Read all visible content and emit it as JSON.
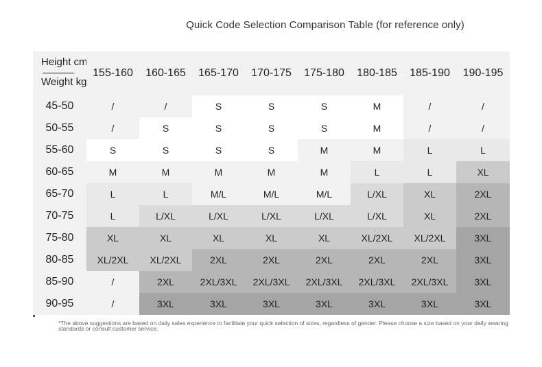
{
  "title": "Quick Code Selection Comparison Table (for reference only)",
  "header": {
    "height_label": "Height cm",
    "weight_label": "Weight kg",
    "heights": [
      "155-160",
      "160-165",
      "165-170",
      "170-175",
      "175-180",
      "180-185",
      "185-190",
      "190-195"
    ]
  },
  "rows": [
    {
      "weight": "45-50",
      "sizes": [
        "/",
        "/",
        "S",
        "S",
        "S",
        "M",
        "/",
        "/"
      ]
    },
    {
      "weight": "50-55",
      "sizes": [
        "/",
        "S",
        "S",
        "S",
        "S",
        "M",
        "/",
        "/"
      ]
    },
    {
      "weight": "55-60",
      "sizes": [
        "S",
        "S",
        "S",
        "S",
        "M",
        "M",
        "L",
        "L"
      ]
    },
    {
      "weight": "60-65",
      "sizes": [
        "M",
        "M",
        "M",
        "M",
        "M",
        "L",
        "L",
        "XL"
      ]
    },
    {
      "weight": "65-70",
      "sizes": [
        "L",
        "L",
        "M/L",
        "M/L",
        "M/L",
        "L/XL",
        "XL",
        "2XL"
      ]
    },
    {
      "weight": "70-75",
      "sizes": [
        "L",
        "L/XL",
        "L/XL",
        "L/XL",
        "L/XL",
        "L/XL",
        "XL",
        "2XL"
      ]
    },
    {
      "weight": "75-80",
      "sizes": [
        "XL",
        "XL",
        "XL",
        "XL",
        "XL",
        "XL/2XL",
        "XL/2XL",
        "3XL"
      ]
    },
    {
      "weight": "80-85",
      "sizes": [
        "XL/2XL",
        "XL/2XL",
        "2XL",
        "2XL",
        "2XL",
        "2XL",
        "2XL",
        "3XL"
      ]
    },
    {
      "weight": "85-90",
      "sizes": [
        "/",
        "2XL",
        "2XL/3XL",
        "2XL/3XL",
        "2XL/3XL",
        "2XL/3XL",
        "2XL/3XL",
        "3XL"
      ]
    },
    {
      "weight": "90-95",
      "sizes": [
        "/",
        "3XL",
        "3XL",
        "3XL",
        "3XL",
        "3XL",
        "3XL",
        "3XL"
      ]
    }
  ],
  "note": "*The above suggestions are based on daily sales experience to facilitate your quick selection of sizes, regardless of gender. Please choose a size based on your daily wearing standards or consult customer service."
}
